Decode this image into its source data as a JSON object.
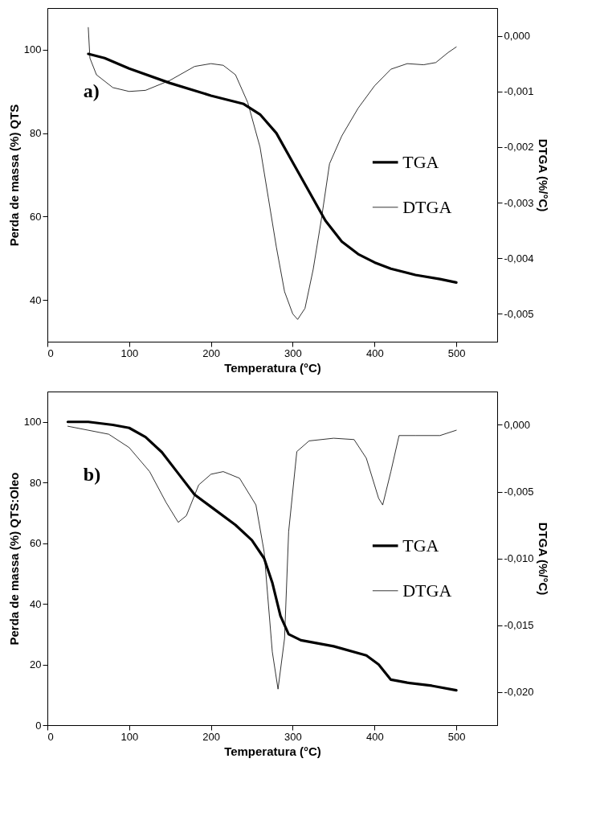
{
  "chart_data": [
    {
      "type": "line",
      "xlabel": "Temperatura (°C)",
      "ylabel": "Perda de massa (%) QTS",
      "y2label": "DTGA (%/°C)",
      "annotations": [
        "a)"
      ],
      "xlim": [
        0,
        550
      ],
      "xticks": [
        0,
        100,
        200,
        300,
        400,
        500
      ],
      "ylim": [
        30,
        110
      ],
      "yticks": [
        40,
        60,
        80,
        100
      ],
      "y2lim": [
        -0.0055,
        0.0005
      ],
      "y2ticks": [
        {
          "value": 0,
          "label": "0,000"
        },
        {
          "value": -0.001,
          "label": "-0,001"
        },
        {
          "value": -0.002,
          "label": "-0,002"
        },
        {
          "value": -0.003,
          "label": "-0,003"
        },
        {
          "value": -0.004,
          "label": "-0,004"
        },
        {
          "value": -0.005,
          "label": "-0,005"
        }
      ],
      "legend": "right",
      "grid": false,
      "series": [
        {
          "name": "TGA",
          "color": "#000000",
          "x": [
            50,
            70,
            100,
            150,
            200,
            240,
            260,
            280,
            300,
            320,
            340,
            360,
            380,
            400,
            420,
            450,
            480,
            500
          ],
          "values": [
            99,
            98,
            95.5,
            92,
            89,
            87,
            84.5,
            80,
            73,
            66,
            59,
            54,
            51,
            49,
            47.5,
            46,
            45,
            44.2
          ]
        },
        {
          "name": "DTGA",
          "color": "#000000",
          "axis": "y2",
          "x": [
            50,
            52,
            60,
            80,
            100,
            120,
            150,
            180,
            200,
            215,
            230,
            245,
            260,
            270,
            280,
            290,
            300,
            306,
            315,
            325,
            335,
            345,
            360,
            380,
            400,
            420,
            440,
            460,
            475,
            490,
            500
          ],
          "values": [
            0.00015,
            -0.0004,
            -0.0007,
            -0.00093,
            -0.001,
            -0.00098,
            -0.0008,
            -0.00055,
            -0.0005,
            -0.00053,
            -0.0007,
            -0.0012,
            -0.002,
            -0.0029,
            -0.0038,
            -0.0046,
            -0.005,
            -0.0051,
            -0.0049,
            -0.0042,
            -0.0033,
            -0.0023,
            -0.0018,
            -0.0013,
            -0.0009,
            -0.0006,
            -0.0005,
            -0.00052,
            -0.00048,
            -0.0003,
            -0.0002
          ]
        }
      ]
    },
    {
      "type": "line",
      "xlabel": "Temperatura (°C)",
      "ylabel": "Perda de massa (%) QTS:Oleo",
      "y2label": "DTGA (%/°C)",
      "annotations": [
        "b)"
      ],
      "xlim": [
        0,
        550
      ],
      "xticks": [
        0,
        100,
        200,
        300,
        400,
        500
      ],
      "ylim": [
        0,
        110
      ],
      "yticks": [
        0,
        20,
        40,
        60,
        80,
        100
      ],
      "y2lim": [
        -0.0225,
        0.0025
      ],
      "y2ticks": [
        {
          "value": 0,
          "label": "0,000"
        },
        {
          "value": -0.005,
          "label": "-0,005"
        },
        {
          "value": -0.01,
          "label": "-0,010"
        },
        {
          "value": -0.015,
          "label": "-0,015"
        },
        {
          "value": -0.02,
          "label": "-0,020"
        }
      ],
      "legend": "right",
      "grid": false,
      "series": [
        {
          "name": "TGA",
          "color": "#000000",
          "x": [
            25,
            50,
            80,
            100,
            120,
            140,
            160,
            180,
            200,
            230,
            250,
            265,
            275,
            285,
            295,
            310,
            350,
            390,
            405,
            420,
            440,
            470,
            500
          ],
          "values": [
            100,
            100,
            99,
            98,
            95,
            90,
            83,
            76,
            72,
            66,
            61,
            55,
            47,
            36,
            30,
            28,
            26,
            23,
            20,
            15,
            14,
            13,
            11.5
          ]
        },
        {
          "name": "DTGA",
          "color": "#000000",
          "axis": "y2",
          "x": [
            25,
            50,
            75,
            100,
            125,
            145,
            160,
            170,
            185,
            200,
            215,
            235,
            255,
            265,
            275,
            282,
            290,
            295,
            305,
            320,
            350,
            375,
            390,
            405,
            410,
            420,
            430,
            450,
            480,
            500
          ],
          "values": [
            -0.0001,
            -0.0004,
            -0.0007,
            -0.0017,
            -0.0035,
            -0.0058,
            -0.0073,
            -0.0068,
            -0.0045,
            -0.0037,
            -0.0035,
            -0.004,
            -0.006,
            -0.0095,
            -0.017,
            -0.0198,
            -0.016,
            -0.008,
            -0.002,
            -0.0012,
            -0.001,
            -0.0011,
            -0.0025,
            -0.0055,
            -0.006,
            -0.0035,
            -0.0008,
            -0.0008,
            -0.0008,
            -0.0004
          ]
        }
      ]
    }
  ]
}
